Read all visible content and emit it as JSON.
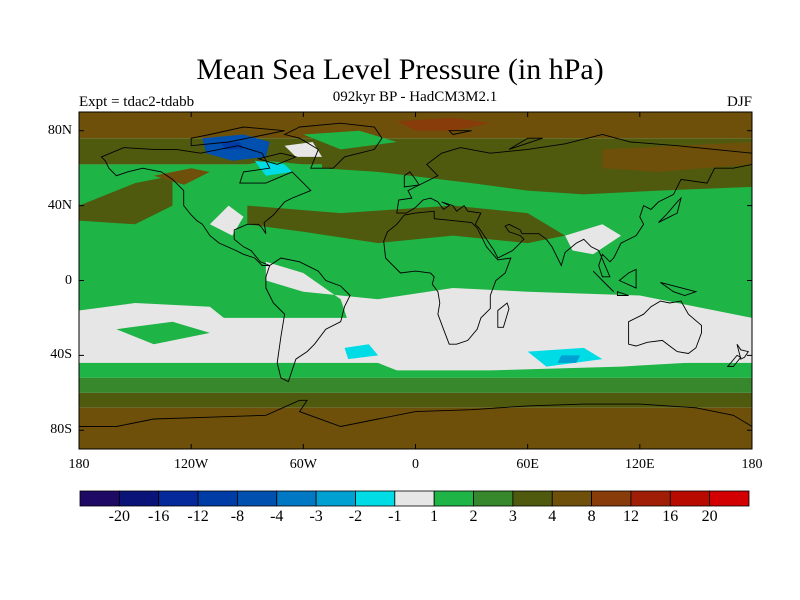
{
  "title": "Mean Sea Level Pressure (in hPa)",
  "subtitle": "092kyr BP - HadCM3M2.1",
  "experiment": "Expt = tdac2-tdabb",
  "season": "DJF",
  "map": {
    "projection": "cylindrical equidistant",
    "lon_range": [
      -180,
      180
    ],
    "lat_range": [
      -90,
      90
    ],
    "x_ticks": [
      "180",
      "120W",
      "60W",
      "0",
      "60E",
      "120E",
      "180"
    ],
    "y_ticks": [
      "80N",
      "40N",
      "0",
      "40S",
      "80S"
    ],
    "coastlines": true
  },
  "colorbar": {
    "labels": [
      "-20",
      "-16",
      "-12",
      "-8",
      "-4",
      "-3",
      "-2",
      "-1",
      "1",
      "2",
      "3",
      "4",
      "8",
      "12",
      "16",
      "20"
    ],
    "colors": [
      "#1e0a64",
      "#0a1478",
      "#05289b",
      "#003ca5",
      "#0050af",
      "#0078c3",
      "#00a0d2",
      "#00dce6",
      "#e6e6e6",
      "#1eb446",
      "#37872d",
      "#505a0f",
      "#6e500a",
      "#873c0a",
      "#a01e05",
      "#b90a00",
      "#d20000"
    ]
  }
}
